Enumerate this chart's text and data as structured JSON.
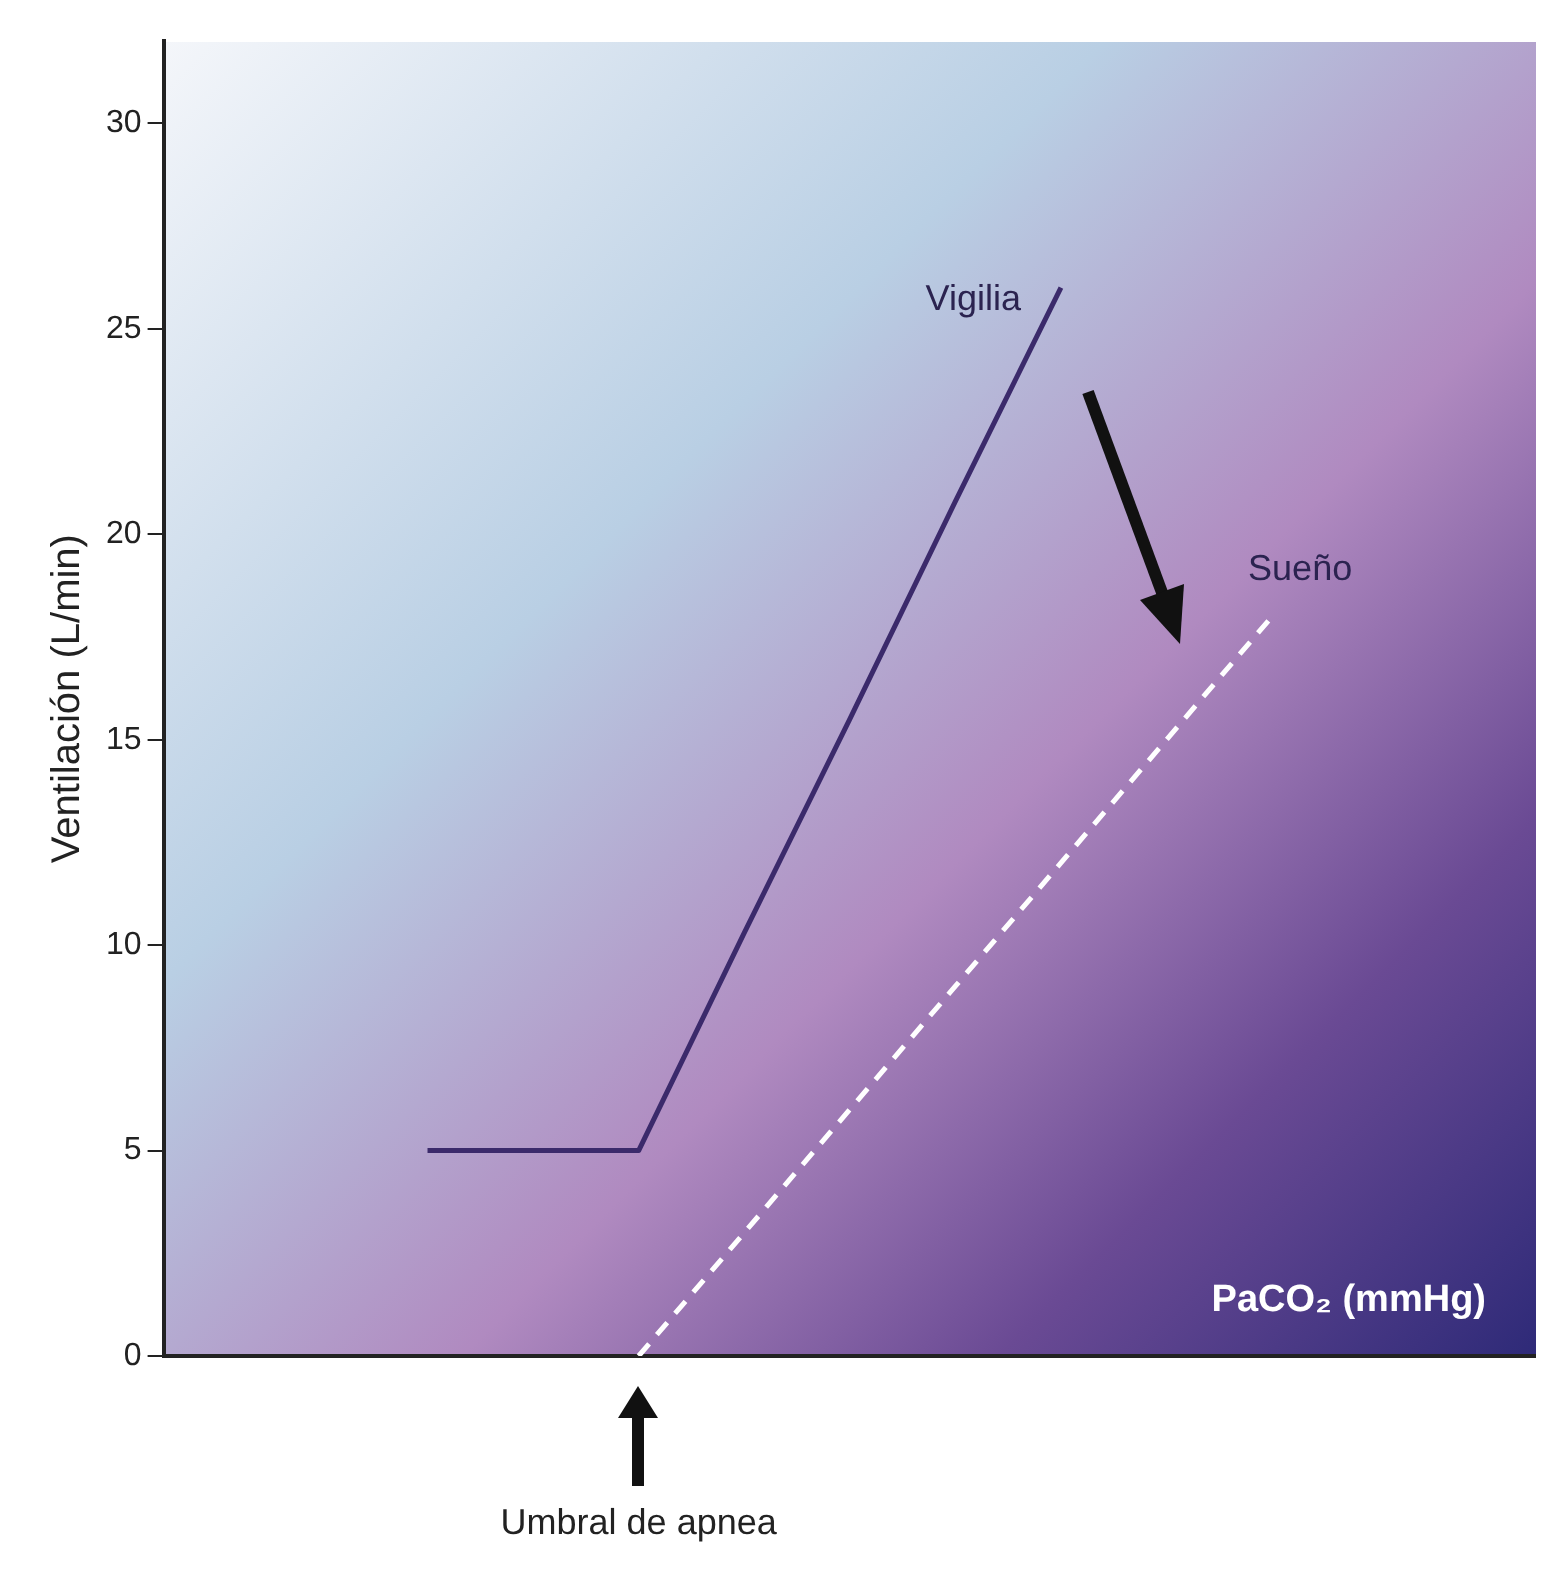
{
  "chart_data": {
    "type": "line",
    "ylabel": "Ventilación (L/min)",
    "xlabel": "PaCO₂ (mmHg)",
    "categories": [
      null,
      null,
      null,
      null,
      null,
      null,
      null,
      null,
      null,
      null,
      null,
      null,
      null
    ],
    "series": [
      {
        "name": "Vigilia",
        "color": "#3b2a6b",
        "line_style": "solid",
        "values": [
          null,
          null,
          5,
          5,
          5,
          10.3,
          15.5,
          20.8,
          26,
          null,
          null,
          null,
          null
        ]
      },
      {
        "name": "Sueño",
        "color": "#ffffff",
        "line_style": "dashed",
        "values": [
          null,
          null,
          null,
          null,
          0,
          3,
          6,
          9,
          12,
          15,
          18,
          null,
          null
        ]
      }
    ],
    "ylim": [
      0,
      32
    ],
    "yticks": [
      0,
      5,
      10,
      15,
      20,
      25,
      30
    ],
    "annotations": [
      "Umbral de apnea"
    ],
    "grid": false,
    "legend": false,
    "marker": "none",
    "tick_labels": "y"
  }
}
